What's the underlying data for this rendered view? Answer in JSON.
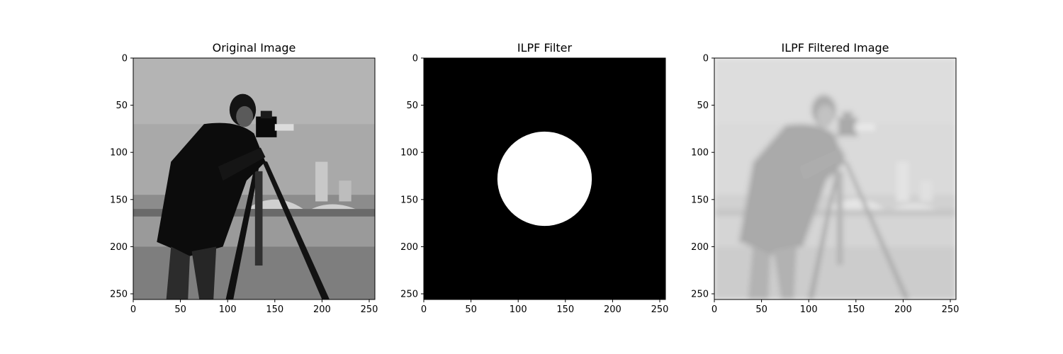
{
  "chart_data": [
    {
      "type": "image",
      "title": "Original Image",
      "image_shape": [
        256,
        256
      ],
      "xlim": [
        0,
        256
      ],
      "ylim": [
        256,
        0
      ],
      "xticks": [
        0,
        50,
        100,
        150,
        200,
        250
      ],
      "yticks": [
        0,
        50,
        100,
        150,
        200,
        250
      ],
      "colormap": "gray",
      "content": "cameraman photograph"
    },
    {
      "type": "image",
      "title": "ILPF Filter",
      "image_shape": [
        256,
        256
      ],
      "xlim": [
        0,
        256
      ],
      "ylim": [
        256,
        0
      ],
      "xticks": [
        0,
        50,
        100,
        150,
        200,
        250
      ],
      "yticks": [
        0,
        50,
        100,
        150,
        200,
        250
      ],
      "colormap": "gray",
      "filter": {
        "center": [
          128,
          128
        ],
        "cutoff_radius": 50,
        "inside_value": 1,
        "outside_value": 0
      }
    },
    {
      "type": "image",
      "title": "ILPF Filtered Image",
      "image_shape": [
        256,
        256
      ],
      "xlim": [
        0,
        256
      ],
      "ylim": [
        256,
        0
      ],
      "xticks": [
        0,
        50,
        100,
        150,
        200,
        250
      ],
      "yticks": [
        0,
        50,
        100,
        150,
        200,
        250
      ],
      "colormap": "gray",
      "content": "low-pass filtered cameraman photograph"
    }
  ]
}
